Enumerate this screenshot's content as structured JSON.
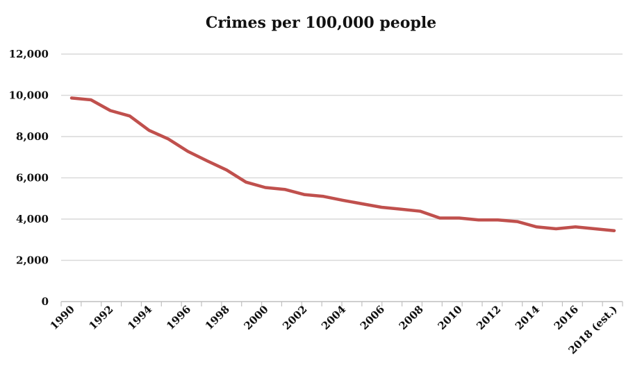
{
  "chart_data": {
    "type": "line",
    "title": "Crimes per 100,000 people",
    "xlabel": "",
    "ylabel": "",
    "ylim": [
      0,
      12000
    ],
    "y_ticks": [
      "0",
      "2,000",
      "4,000",
      "6,000",
      "8,000",
      "10,000",
      "12,000"
    ],
    "categories": [
      "1990",
      "1991",
      "1992",
      "1993",
      "1994",
      "1995",
      "1996",
      "1997",
      "1998",
      "1999",
      "2000",
      "2001",
      "2002",
      "2003",
      "2004",
      "2005",
      "2006",
      "2007",
      "2008",
      "2009",
      "2010",
      "2011",
      "2012",
      "2013",
      "2014",
      "2015",
      "2016",
      "2017",
      "2018 (est.)"
    ],
    "x_tick_labels": [
      "1990",
      "1992",
      "1994",
      "1996",
      "1998",
      "2000",
      "2002",
      "2004",
      "2006",
      "2008",
      "2010",
      "2012",
      "2014",
      "2016",
      "2018 (est.)"
    ],
    "series": [
      {
        "values": [
          9870,
          9780,
          9260,
          9000,
          8300,
          7880,
          7280,
          6820,
          6380,
          5790,
          5530,
          5440,
          5190,
          5100,
          4910,
          4740,
          4570,
          4480,
          4380,
          4050,
          4050,
          3960,
          3960,
          3880,
          3620,
          3530,
          3620,
          3530,
          3440
        ],
        "color": "#c0504d"
      }
    ],
    "grid": true,
    "legend": "none"
  }
}
